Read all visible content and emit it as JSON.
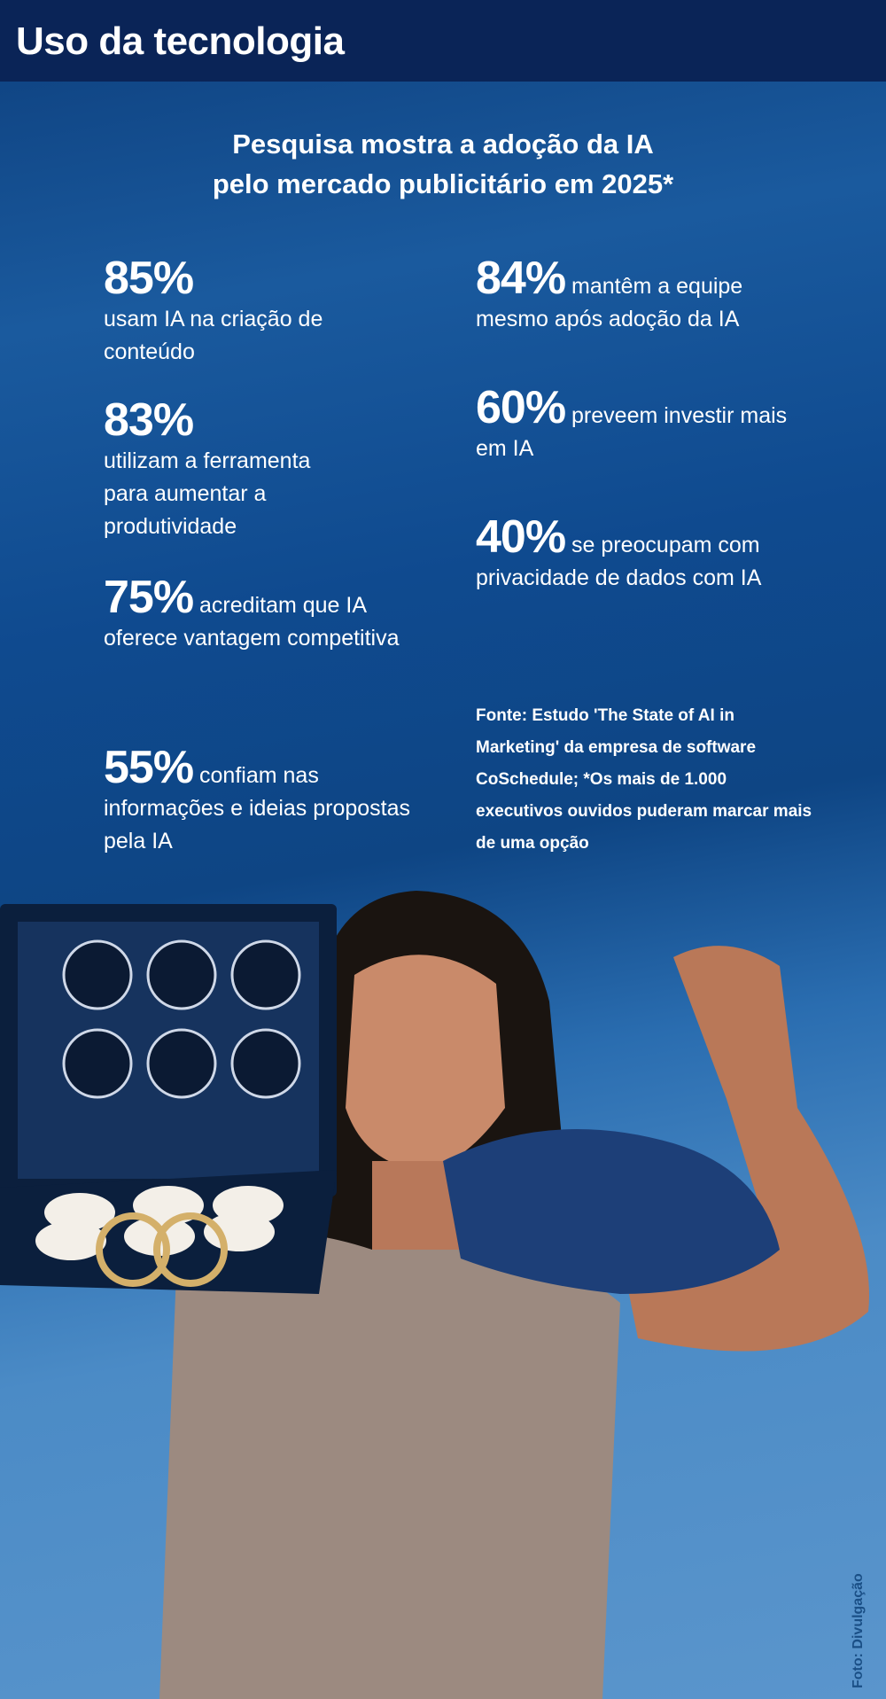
{
  "header": {
    "title": "Uso da tecnologia"
  },
  "title": {
    "line1": "Pesquisa  mostra a adoção da IA",
    "line2": "pelo mercado publicitário em 2025*"
  },
  "left_stats": [
    {
      "value": "85%",
      "text": "usam IA na criação de conteúdo"
    },
    {
      "value": "83%",
      "text": "utilizam a ferramenta para aumentar a produtividade"
    },
    {
      "value": "75%",
      "text": "acreditam que IA oferece vantagem competitiva"
    },
    {
      "value": "55%",
      "text": "confiam nas informações e ideias propostas pela IA"
    }
  ],
  "right_stats": [
    {
      "value": "84%",
      "text": "mantêm a equipe mesmo após adoção da IA"
    },
    {
      "value": "60%",
      "text": "preveem investir mais em IA"
    },
    {
      "value": "40%",
      "text": "se preocupam com privacidade de dados com IA"
    }
  ],
  "source": "Fonte: Estudo  'The State of AI in Marketing' da empresa de software CoSchedule; *Os mais de 1.000 executivos ouvidos puderam marcar mais de uma opção",
  "photo_credit": "Foto: Divulgação",
  "colors": {
    "header": "#0a2457",
    "background": "#0e4584"
  }
}
